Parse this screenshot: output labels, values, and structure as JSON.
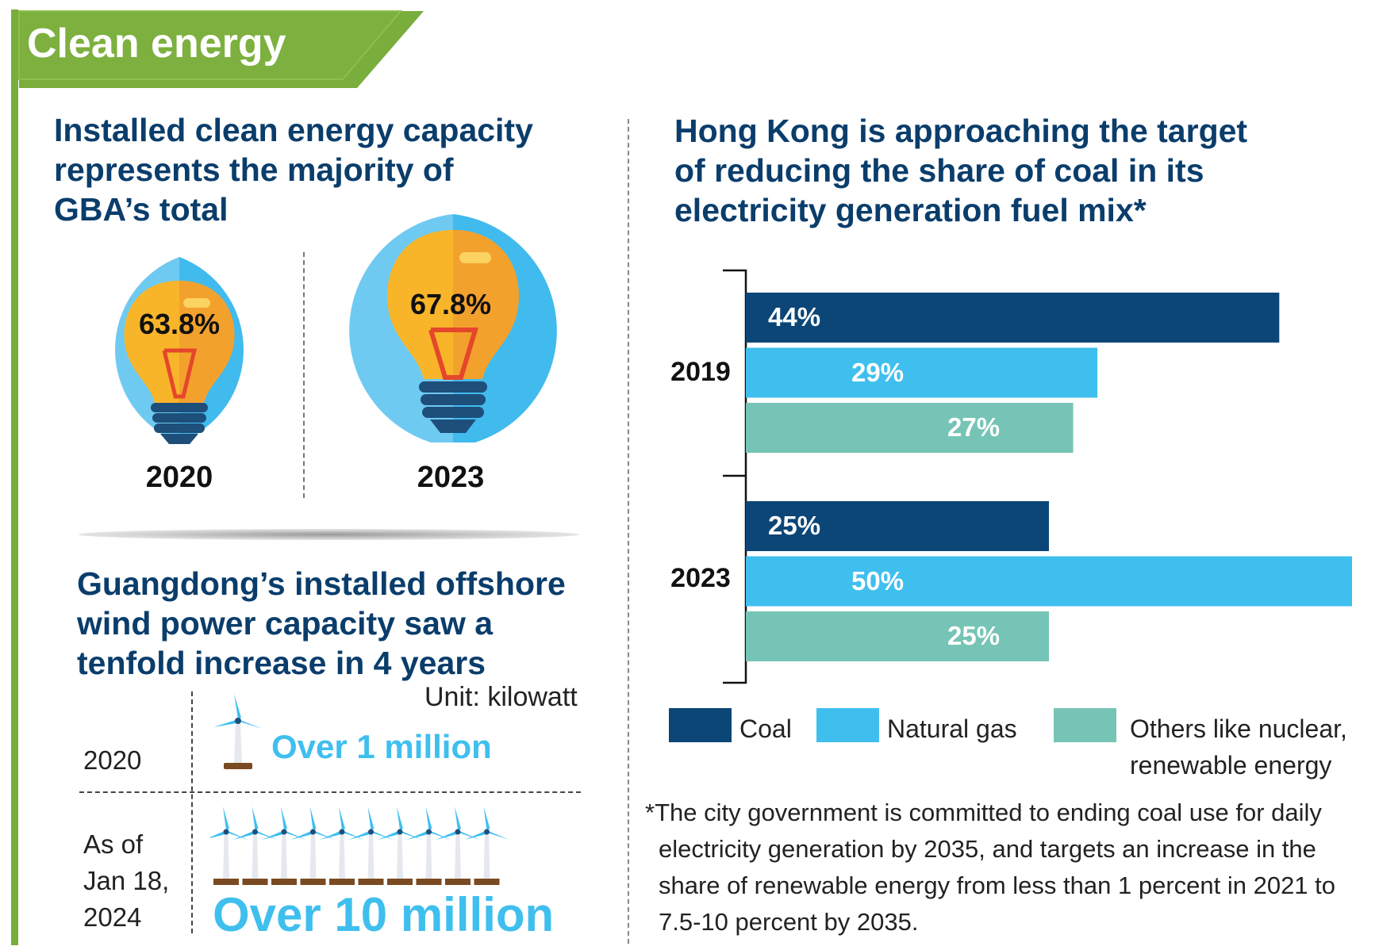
{
  "header": {
    "title": "Clean energy"
  },
  "gba": {
    "heading": [
      "Installed clean energy capacity",
      "represents the majority of",
      "GBA’s total"
    ],
    "items": [
      {
        "year": "2020",
        "percent": "63.8%"
      },
      {
        "year": "2023",
        "percent": "67.8%"
      }
    ]
  },
  "wind": {
    "heading": [
      "Guangdong’s installed offshore",
      "wind power capacity saw a",
      "tenfold increase in 4 years"
    ],
    "unit": "Unit: kilowatt",
    "row1": {
      "label": "2020",
      "value": "Over 1 million",
      "turbines": 1
    },
    "row2": {
      "label_lines": [
        "As of",
        "Jan 18,",
        "2024"
      ],
      "value": "Over 10 million",
      "turbines": 10
    }
  },
  "hk": {
    "heading": [
      "Hong Kong is approaching the target",
      "of reducing the share of coal in its",
      "electricity generation fuel mix*"
    ],
    "footnote": [
      "*The city government is committed to ending coal use for daily",
      "electricity generation by 2035, and targets an increase in the",
      "share of renewable energy from less than 1 percent in 2021 to",
      "7.5-10 percent by 2035."
    ]
  },
  "chart_data": {
    "type": "bar",
    "orientation": "horizontal",
    "categories": [
      "2019",
      "2023"
    ],
    "series": [
      {
        "name": "Coal",
        "values": [
          44,
          25
        ],
        "labels": [
          "44%",
          "25%"
        ],
        "color": "#0b4677"
      },
      {
        "name": "Natural gas",
        "values": [
          29,
          50
        ],
        "labels": [
          "29%",
          "50%"
        ],
        "color": "#3fbfee"
      },
      {
        "name": "Others like nuclear, renewable energy",
        "legend_lines": [
          "Others like nuclear,",
          "renewable energy"
        ],
        "values": [
          27,
          25
        ],
        "labels": [
          "27%",
          "25%"
        ],
        "color": "#76c4b5"
      }
    ],
    "xlim": [
      0,
      50
    ],
    "legend": "bottom",
    "grid": false
  },
  "colors": {
    "accent_green": "#79ad3c",
    "heading_blue": "#0a3d6b",
    "sky": "#3fbfee"
  }
}
